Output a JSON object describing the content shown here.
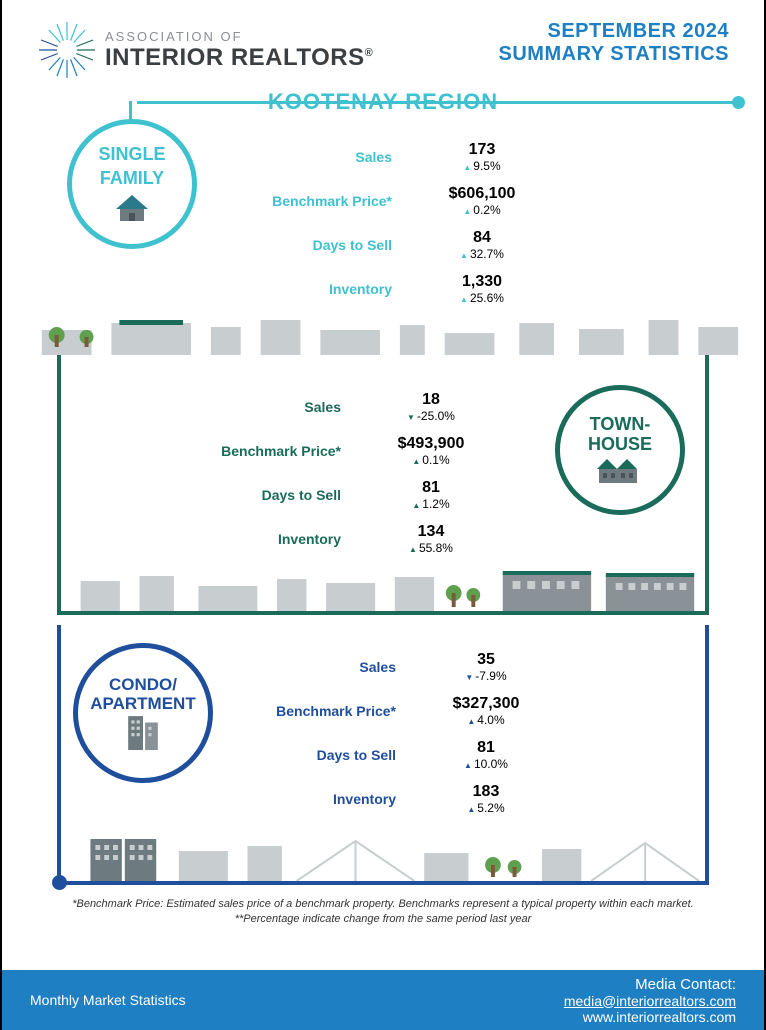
{
  "colors": {
    "single_family": "#3fc1cf",
    "townhouse": "#1a6b5a",
    "condo": "#1f4e9c",
    "header_blue": "#1e7fc3",
    "footer_bg": "#1e7fc3",
    "region": "#3fc1cf",
    "skyline_gray": "#c8cdd0",
    "tree_green": "#5fa04e"
  },
  "header": {
    "assoc_line": "ASSOCIATION OF",
    "realtors_line": "INTERIOR REALTORS",
    "title_l1": "SEPTEMBER 2024",
    "title_l2": "SUMMARY STATISTICS"
  },
  "region": "KOOTENAY REGION",
  "metrics_labels": {
    "sales": "Sales",
    "benchmark": "Benchmark Price*",
    "days": "Days to Sell",
    "inventory": "Inventory"
  },
  "sections": [
    {
      "key": "single_family",
      "label_l1": "SINGLE",
      "label_l2": "FAMILY",
      "color": "#3fc1cf",
      "icon": "house",
      "stats": {
        "sales": {
          "value": "173",
          "pct": "9.5%",
          "dir": "up"
        },
        "benchmark": {
          "value": "$606,100",
          "pct": "0.2%",
          "dir": "up"
        },
        "days": {
          "value": "84",
          "pct": "32.7%",
          "dir": "up"
        },
        "inventory": {
          "value": "1,330",
          "pct": "25.6%",
          "dir": "up"
        }
      }
    },
    {
      "key": "townhouse",
      "label_l1": "TOWN-",
      "label_l2": "HOUSE",
      "color": "#1a6b5a",
      "icon": "townhouse",
      "stats": {
        "sales": {
          "value": "18",
          "pct": "-25.0%",
          "dir": "down"
        },
        "benchmark": {
          "value": "$493,900",
          "pct": "0.1%",
          "dir": "up"
        },
        "days": {
          "value": "81",
          "pct": "1.2%",
          "dir": "up"
        },
        "inventory": {
          "value": "134",
          "pct": "55.8%",
          "dir": "up"
        }
      }
    },
    {
      "key": "condo",
      "label_l1": "CONDO/",
      "label_l2": "APARTMENT",
      "color": "#1f4e9c",
      "icon": "building",
      "stats": {
        "sales": {
          "value": "35",
          "pct": "-7.9%",
          "dir": "down"
        },
        "benchmark": {
          "value": "$327,300",
          "pct": "4.0%",
          "dir": "up"
        },
        "days": {
          "value": "81",
          "pct": "10.0%",
          "dir": "up"
        },
        "inventory": {
          "value": "183",
          "pct": "5.2%",
          "dir": "up"
        }
      }
    }
  ],
  "footnotes": {
    "l1": "*Benchmark Price: Estimated sales price of a benchmark property. Benchmarks represent a typical property within each market.",
    "l2": "**Percentage indicate change from the same period last year"
  },
  "footer": {
    "left": "Monthly Market Statistics",
    "contact": "Media Contact:",
    "email": "media@interiorrealtors.com",
    "url": "www.interiorrealtors.com"
  }
}
